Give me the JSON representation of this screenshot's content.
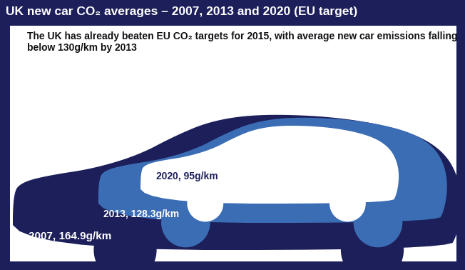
{
  "chart_data": {
    "type": "pictogram",
    "title": "UK new car CO₂ averages – 2007, 2013 and 2020 (EU target)",
    "subtitle": "The UK has already beaten EU CO₂ targets for 2015, with average new car emissions falling below 130g/km by 2013",
    "values": [
      164.9,
      128.3,
      95
    ],
    "value_labels": [
      "2007, 164.9g/km",
      "2013, 128.3g/km",
      "2020, 95g/km"
    ],
    "colors": [
      "#1c1f5a",
      "#3b6db5",
      "#ffffff"
    ],
    "tick_labels": false
  }
}
